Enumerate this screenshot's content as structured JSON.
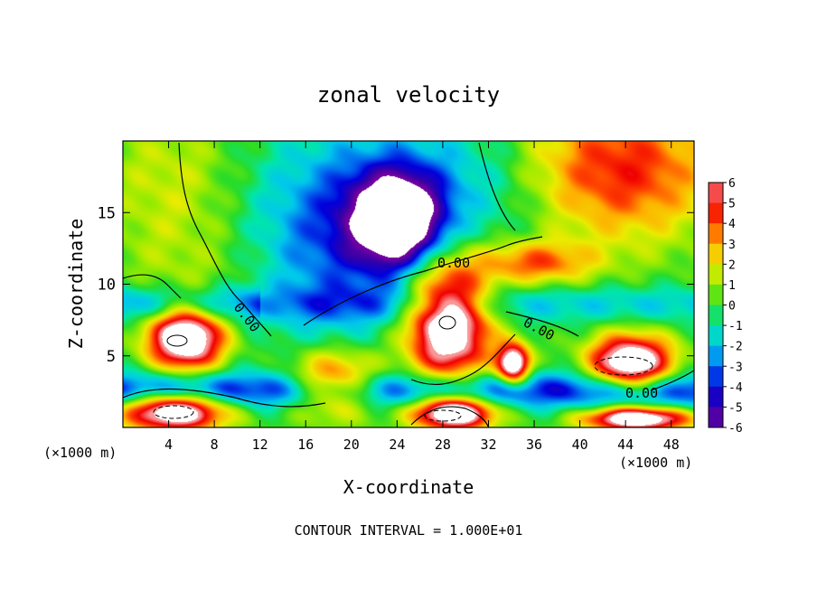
{
  "chart_data": {
    "type": "heatmap",
    "title": "zonal velocity",
    "xlabel": "X-coordinate",
    "ylabel": "Z-coordinate",
    "x_unit": "(×1000 m)",
    "footer": "CONTOUR INTERVAL = 1.000E+01",
    "xlim": [
      0,
      50
    ],
    "ylim": [
      0,
      20
    ],
    "x_ticks": [
      "4",
      "8",
      "12",
      "16",
      "20",
      "24",
      "28",
      "32",
      "36",
      "40",
      "44",
      "48"
    ],
    "y_ticks": [
      "5",
      "10",
      "15"
    ],
    "colorbar": {
      "ticks": [
        "6",
        "5",
        "4",
        "3",
        "2",
        "1",
        "0",
        "-1",
        "-2",
        "-3",
        "-4",
        "-5",
        "-6"
      ],
      "range": [
        -6,
        6
      ]
    },
    "contour_labels": [
      "0.00",
      "0.00",
      "0.00",
      "0.00"
    ],
    "field_features": [
      {
        "kind": "min-blob",
        "center": [
          24,
          14.5
        ],
        "radius": [
          3.8,
          3.2
        ],
        "amplitude": -9
      },
      {
        "kind": "max-blob",
        "center": [
          28.5,
          7.3
        ],
        "radius": [
          3.6,
          4.2
        ],
        "amplitude": 9
      },
      {
        "kind": "max-blob",
        "center": [
          5.5,
          6.2
        ],
        "radius": [
          3.2,
          2.2
        ],
        "amplitude": 9
      },
      {
        "kind": "max-blob",
        "center": [
          44.5,
          4.5
        ],
        "radius": [
          3.6,
          1.9
        ],
        "amplitude": 9
      },
      {
        "kind": "max-blob",
        "center": [
          34.2,
          4.4
        ],
        "radius": [
          1.4,
          1.4
        ],
        "amplitude": 9
      },
      {
        "kind": "max-blob",
        "center": [
          4.5,
          1.1
        ],
        "radius": [
          4.5,
          1.3
        ],
        "amplitude": 9
      },
      {
        "kind": "max-blob",
        "center": [
          29,
          1.0
        ],
        "radius": [
          3.5,
          1.1
        ],
        "amplitude": 9
      },
      {
        "kind": "max-blob",
        "center": [
          45,
          0.6
        ],
        "radius": [
          4.5,
          0.8
        ],
        "amplitude": 9
      },
      {
        "kind": "max-blob",
        "center": [
          18.5,
          3.0
        ],
        "radius": [
          4.0,
          2.2
        ],
        "amplitude": 6
      },
      {
        "kind": "max-blob",
        "center": [
          43,
          18
        ],
        "radius": [
          9,
          5
        ],
        "amplitude": 5
      },
      {
        "kind": "max-blob",
        "center": [
          36,
          11.5
        ],
        "radius": [
          5,
          1.5
        ],
        "amplitude": 4
      }
    ]
  }
}
